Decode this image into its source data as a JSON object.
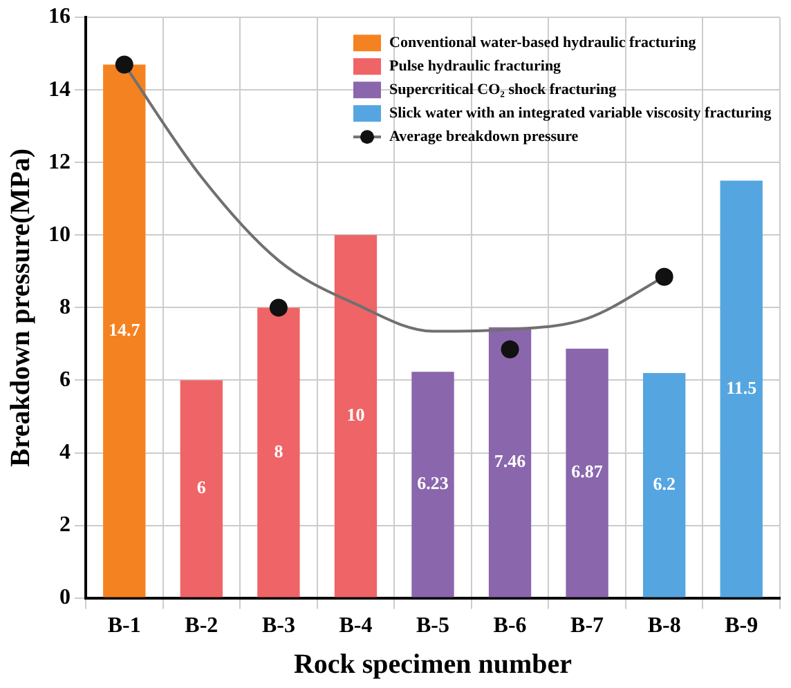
{
  "chart_data": {
    "type": "bar",
    "xlabel": "Rock specimen number",
    "ylabel": "Breakdown pressure(MPa)",
    "categories": [
      "B-1",
      "B-2",
      "B-3",
      "B-4",
      "B-5",
      "B-6",
      "B-7",
      "B-8",
      "B-9"
    ],
    "series": [
      {
        "name": "Conventional water-based hydraulic fracturing",
        "color": "#f58220",
        "values": [
          14.7,
          null,
          null,
          null,
          null,
          null,
          null,
          null,
          null
        ],
        "value_labels": [
          "14.7",
          null,
          null,
          null,
          null,
          null,
          null,
          null,
          null
        ]
      },
      {
        "name": "Pulse hydraulic fracturing",
        "color": "#ef6466",
        "values": [
          null,
          6,
          8,
          10,
          null,
          null,
          null,
          null,
          null
        ],
        "value_labels": [
          null,
          "6",
          "8",
          "10",
          null,
          null,
          null,
          null,
          null
        ]
      },
      {
        "name": "Supercritical CO₂ shock fracturing",
        "color": "#8a66ad",
        "values": [
          null,
          null,
          null,
          null,
          6.23,
          7.46,
          6.87,
          null,
          null
        ],
        "value_labels": [
          null,
          null,
          null,
          null,
          "6.23",
          "7.46",
          "6.87",
          null,
          null
        ]
      },
      {
        "name": "Slick water with an integrated variable viscosity fracturing",
        "color": "#55a6e0",
        "values": [
          null,
          null,
          null,
          null,
          null,
          null,
          null,
          6.2,
          11.5
        ],
        "value_labels": [
          null,
          null,
          null,
          null,
          null,
          null,
          null,
          "6.2",
          "11.5"
        ]
      },
      {
        "name": "Average breakdown pressure",
        "type": "scatter",
        "color": "#111111",
        "marker": "circle",
        "x": [
          "B-1",
          "B-3",
          "B-6",
          "B-8"
        ],
        "values": [
          14.7,
          8.0,
          6.85,
          8.85
        ]
      },
      {
        "type": "line",
        "color": "#707070",
        "x": [
          "B-1",
          "B-2",
          "B-3",
          "B-4",
          "B-5",
          "B-6",
          "B-7",
          "B-8"
        ],
        "values": [
          14.7,
          11.6,
          9.3,
          8.1,
          7.35,
          7.4,
          7.7,
          8.85
        ]
      }
    ],
    "ylim": [
      0,
      16
    ],
    "yticks": [
      0,
      2,
      4,
      6,
      8,
      10,
      12,
      14,
      16
    ],
    "grid": true,
    "legend": "top right"
  }
}
